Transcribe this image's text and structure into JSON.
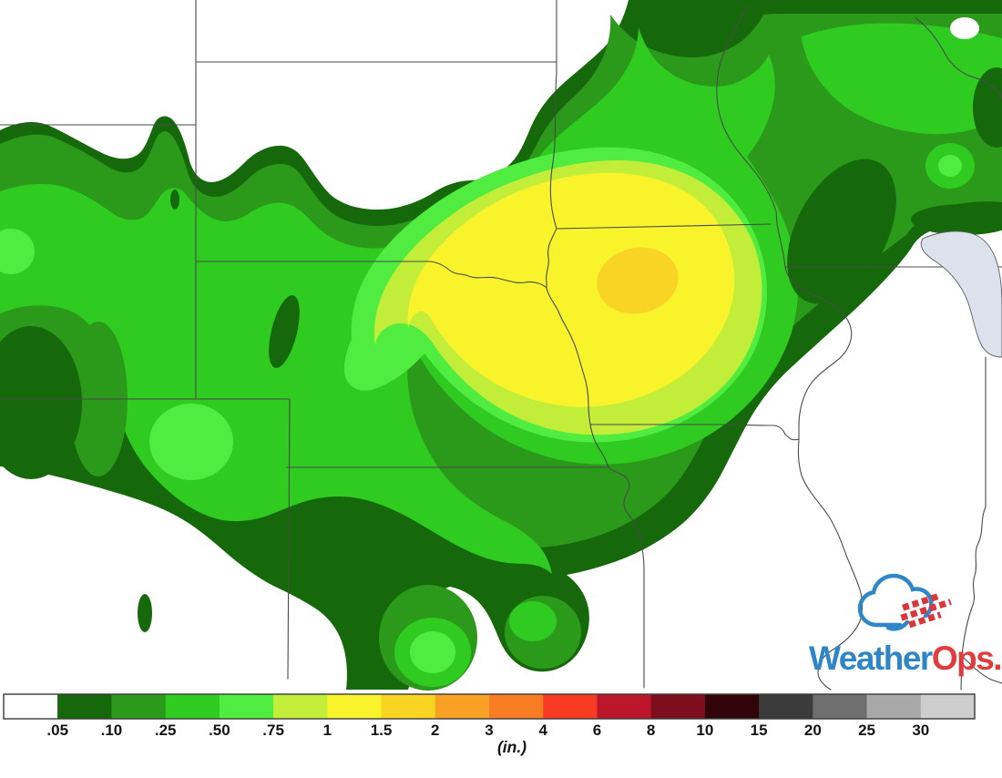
{
  "colorbar": {
    "unit_label": "(in.)",
    "tick_labels": [
      ".05",
      ".10",
      ".25",
      ".50",
      ".75",
      "1",
      "1.5",
      "2",
      "3",
      "4",
      "6",
      "8",
      "10",
      "15",
      "20",
      "25",
      "30"
    ],
    "segment_colors": [
      "#ffffff",
      "#15690b",
      "#2b9a1b",
      "#2fcb20",
      "#50ec40",
      "#c2ee3a",
      "#f8f32b",
      "#f9d423",
      "#f9a127",
      "#f87d23",
      "#f83b22",
      "#bb1629",
      "#7d0e1e",
      "#300409",
      "#3b3b3b",
      "#6e6e6e",
      "#a8a8a8",
      "#cdcdcd"
    ]
  },
  "map": {
    "lake_color": "#dbe2ec",
    "border_color": "#4a4a4a",
    "background_color": "#ffffff"
  },
  "logo": {
    "weather_text": "Weather",
    "ops_text": "Ops.",
    "weather_color": "#2e86c6",
    "ops_color": "#e23b3b",
    "cloud_color": "#2f87c7",
    "arrow_color": "#d8363a"
  }
}
